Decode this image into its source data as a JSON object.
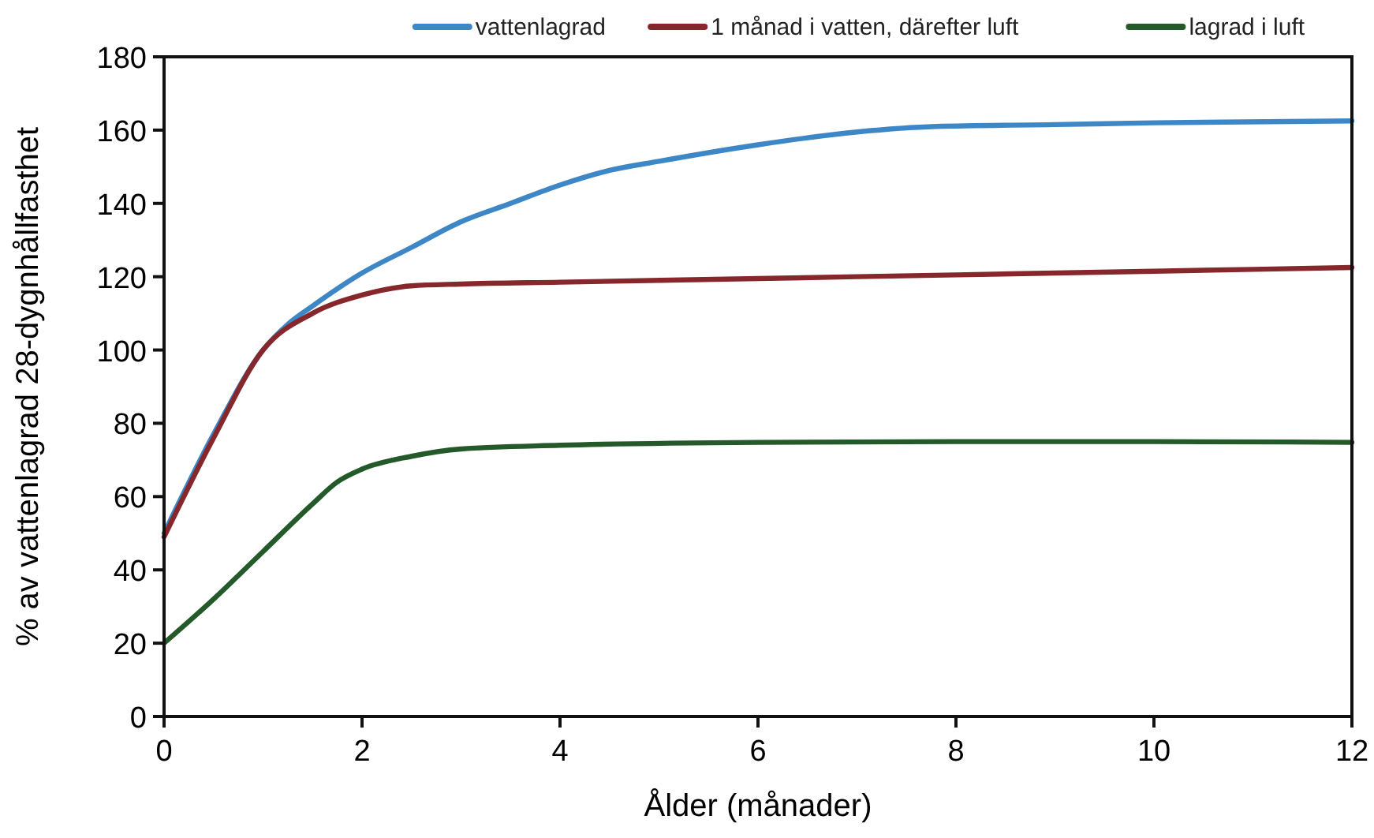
{
  "chart_data": {
    "type": "line",
    "xlabel": "Ålder (månader)",
    "ylabel": "% av vattenlagrad 28-dygnhållfasthet",
    "xlim": [
      0,
      12
    ],
    "xticks": [
      0,
      2,
      4,
      6,
      8,
      10,
      12
    ],
    "ylim": [
      0,
      180
    ],
    "yticks": [
      0,
      20,
      40,
      60,
      80,
      100,
      120,
      140,
      160,
      180
    ],
    "grid": false,
    "legend": "top right",
    "marker": "none",
    "line_style": "solid",
    "series": [
      {
        "name": "vattenlagrad",
        "color": "#3d87c6",
        "x": [
          0,
          0.5,
          1,
          1.25,
          1.5,
          2,
          2.5,
          3,
          3.5,
          4,
          4.5,
          5,
          6,
          7,
          7.8,
          9,
          10,
          12
        ],
        "values": [
          50,
          77,
          100,
          107,
          112,
          121,
          128,
          135,
          140,
          145,
          149,
          151.5,
          156,
          159.5,
          161,
          161.5,
          162,
          162.5
        ]
      },
      {
        "name": "1 månad i vatten, därefter luft",
        "color": "#86282b",
        "x": [
          0,
          0.5,
          1,
          1.5,
          2,
          2.5,
          3,
          4,
          6,
          8,
          10,
          12
        ],
        "values": [
          49,
          76,
          100,
          110,
          115,
          117.5,
          118,
          118.5,
          119.5,
          120.5,
          121.5,
          122.5
        ]
      },
      {
        "name": "lagrad i luft",
        "color": "#245a2a",
        "x": [
          0,
          0.5,
          1,
          1.5,
          1.75,
          2,
          2.5,
          3,
          4,
          6,
          8,
          10,
          12
        ],
        "values": [
          20,
          32,
          45,
          58,
          64,
          67.5,
          71,
          73,
          74,
          74.8,
          75,
          75,
          74.8
        ]
      }
    ]
  }
}
